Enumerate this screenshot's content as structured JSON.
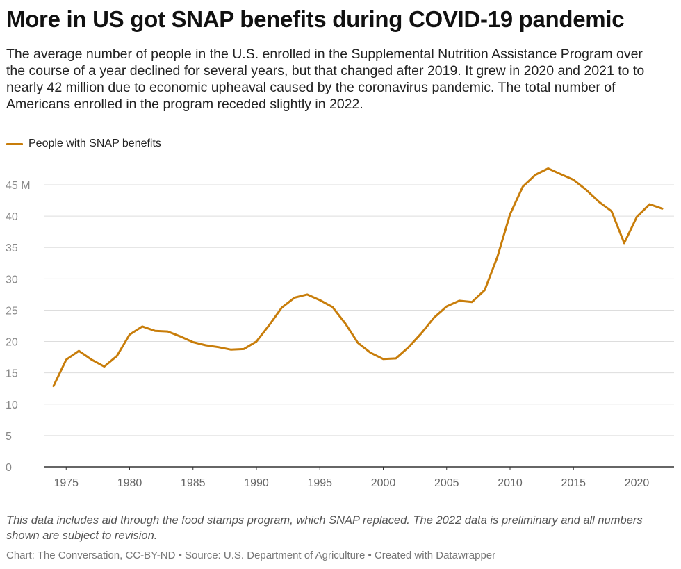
{
  "header": {
    "title": "More in US got SNAP benefits during COVID-19 pandemic",
    "description": "The average number of people in the U.S. enrolled in the Supplemental Nutrition Assistance Program over the course of a year declined for several years, but that changed after 2019. It grew in 2020 and 2021 to to nearly 42 million due to economic upheaval caused by the coronavirus pandemic. The total number of Americans enrolled in the program receded slightly in 2022."
  },
  "footer": {
    "notes": "This data includes aid through the food stamps program, which SNAP replaced. The 2022 data is preliminary and all numbers shown are subject to revision.",
    "credit": "Chart: The Conversation, CC-BY-ND • Source: U.S. Department of Agriculture • Created with Datawrapper"
  },
  "colors": {
    "line": "#c87d0a",
    "grid": "#dddddd",
    "axis": "#333333",
    "tick_text": "#888888"
  },
  "chart_data": {
    "type": "line",
    "title": "More in US got SNAP benefits during COVID-19 pandemic",
    "xlabel": "",
    "ylabel": "",
    "xlim": [
      1974,
      2022
    ],
    "ylim": [
      0,
      48
    ],
    "y_ticks": [
      0,
      5,
      10,
      15,
      20,
      25,
      30,
      35,
      40,
      45
    ],
    "y_tick_labels": [
      "0",
      "5",
      "10",
      "15",
      "20",
      "25",
      "30",
      "35",
      "40",
      "45 M"
    ],
    "x_ticks": [
      1975,
      1980,
      1985,
      1990,
      1995,
      2000,
      2005,
      2010,
      2015,
      2020
    ],
    "x_tick_labels": [
      "1975",
      "1980",
      "1985",
      "1990",
      "1995",
      "2000",
      "2005",
      "2010",
      "2015",
      "2020"
    ],
    "grid": true,
    "legend_position": "top-left",
    "x": [
      1974,
      1975,
      1976,
      1977,
      1978,
      1979,
      1980,
      1981,
      1982,
      1983,
      1984,
      1985,
      1986,
      1987,
      1988,
      1989,
      1990,
      1991,
      1992,
      1993,
      1994,
      1995,
      1996,
      1997,
      1998,
      1999,
      2000,
      2001,
      2002,
      2003,
      2004,
      2005,
      2006,
      2007,
      2008,
      2009,
      2010,
      2011,
      2012,
      2013,
      2014,
      2015,
      2016,
      2017,
      2018,
      2019,
      2020,
      2021,
      2022
    ],
    "series": [
      {
        "name": "People with SNAP benefits",
        "values": [
          12.9,
          17.1,
          18.5,
          17.1,
          16.0,
          17.7,
          21.1,
          22.4,
          21.7,
          21.6,
          20.8,
          19.9,
          19.4,
          19.1,
          18.7,
          18.8,
          20.0,
          22.6,
          25.4,
          27.0,
          27.5,
          26.6,
          25.5,
          22.9,
          19.8,
          18.2,
          17.2,
          17.3,
          19.1,
          21.3,
          23.8,
          25.6,
          26.5,
          26.3,
          28.2,
          33.5,
          40.3,
          44.7,
          46.6,
          47.6,
          46.7,
          45.8,
          44.2,
          42.3,
          40.8,
          35.7,
          39.9,
          41.9,
          41.2
        ]
      }
    ]
  }
}
